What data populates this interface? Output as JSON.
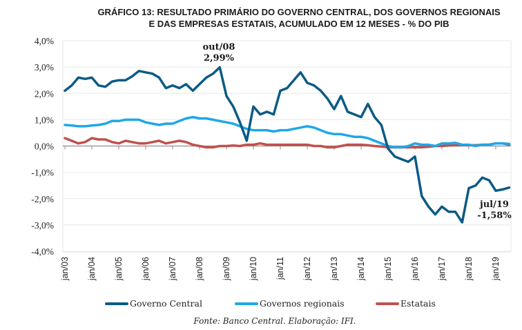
{
  "chart_data": {
    "type": "line",
    "title": "GRÁFICO 13: RESULTADO PRIMÁRIO DO GOVERNO CENTRAL, DOS GOVERNOS REGIONAIS E DAS EMPRESAS ESTATAIS, ACUMULADO EM 12 MESES - % DO PIB",
    "title_lines": [
      "GRÁFICO 13: RESULTADO PRIMÁRIO DO GOVERNO CENTRAL, DOS GOVERNOS REGIONAIS",
      "E DAS EMPRESAS ESTATAIS, ACUMULADO EM 12 MESES - % DO PIB"
    ],
    "xlabel": "",
    "ylabel": "",
    "ylim": [
      -4,
      4
    ],
    "yticks": [
      4,
      3,
      2,
      1,
      0,
      -1,
      -2,
      -3,
      -4
    ],
    "ytick_labels": [
      "4,0%",
      "3,0%",
      "2,0%",
      "1,0%",
      "0,0%",
      "-1,0%",
      "-2,0%",
      "-3,0%",
      "-4,0%"
    ],
    "x_start": "jan/03",
    "x_end": "jul/19",
    "x_step_months": 3,
    "xtick_labels": [
      "jan/03",
      "jan/04",
      "jan/05",
      "jan/06",
      "jan/07",
      "jan/08",
      "jan/09",
      "jan/10",
      "jan/11",
      "jan/12",
      "jan/13",
      "jan/14",
      "jan/15",
      "jan/16",
      "jan/17",
      "jan/18",
      "jan/19"
    ],
    "grid": true,
    "legend_position": "bottom",
    "series": [
      {
        "name": "Governo Central",
        "color": "#0b5a85",
        "values": [
          2.1,
          2.3,
          2.6,
          2.55,
          2.6,
          2.3,
          2.25,
          2.45,
          2.5,
          2.5,
          2.65,
          2.85,
          2.8,
          2.75,
          2.6,
          2.2,
          2.3,
          2.2,
          2.35,
          2.1,
          2.35,
          2.6,
          2.75,
          2.99,
          1.9,
          1.5,
          0.9,
          0.2,
          1.5,
          1.2,
          1.3,
          1.2,
          2.1,
          2.2,
          2.5,
          2.8,
          2.4,
          2.3,
          2.1,
          1.8,
          1.4,
          1.9,
          1.3,
          1.2,
          1.1,
          1.6,
          1.1,
          0.8,
          -0.1,
          -0.4,
          -0.5,
          -0.6,
          -0.4,
          -1.9,
          -2.3,
          -2.6,
          -2.3,
          -2.5,
          -2.5,
          -2.9,
          -1.6,
          -1.5,
          -1.2,
          -1.3,
          -1.7,
          -1.65,
          -1.58
        ]
      },
      {
        "name": "Governos regionais",
        "color": "#1ea7e8",
        "values": [
          0.8,
          0.78,
          0.75,
          0.75,
          0.78,
          0.8,
          0.85,
          0.95,
          0.95,
          1.0,
          1.0,
          1.0,
          0.9,
          0.85,
          0.8,
          0.85,
          0.85,
          0.95,
          1.05,
          1.1,
          1.05,
          1.05,
          1.0,
          0.95,
          0.9,
          0.85,
          0.75,
          0.65,
          0.6,
          0.6,
          0.6,
          0.55,
          0.6,
          0.6,
          0.65,
          0.7,
          0.75,
          0.7,
          0.6,
          0.5,
          0.45,
          0.45,
          0.4,
          0.35,
          0.35,
          0.3,
          0.2,
          0.1,
          0.0,
          -0.05,
          -0.05,
          0.0,
          0.1,
          0.05,
          0.05,
          0.0,
          0.1,
          0.1,
          0.12,
          0.05,
          0.05,
          0.0,
          0.05,
          0.05,
          0.1,
          0.1,
          0.08
        ]
      },
      {
        "name": "Estatais",
        "color": "#c0504d",
        "values": [
          0.3,
          0.2,
          0.1,
          0.15,
          0.3,
          0.25,
          0.25,
          0.15,
          0.1,
          0.2,
          0.15,
          0.1,
          0.1,
          0.15,
          0.2,
          0.1,
          0.15,
          0.2,
          0.15,
          0.05,
          0.0,
          -0.05,
          -0.05,
          0.0,
          0.0,
          0.02,
          0.0,
          0.05,
          0.05,
          0.1,
          0.05,
          0.05,
          0.05,
          0.05,
          0.05,
          0.05,
          0.05,
          0.0,
          0.0,
          -0.05,
          -0.05,
          0.0,
          0.05,
          0.05,
          0.05,
          0.03,
          0.0,
          -0.02,
          -0.05,
          -0.05,
          -0.05,
          -0.05,
          -0.05,
          -0.05,
          -0.03,
          0.0,
          0.0,
          0.02,
          0.03,
          0.03,
          0.03,
          0.03,
          0.05,
          0.05,
          0.1,
          0.1,
          0.05
        ]
      }
    ],
    "annotations": [
      {
        "series": "Governo Central",
        "at": "out/08",
        "value": 2.99,
        "label_lines": [
          "out/08",
          "2,99%"
        ]
      },
      {
        "series": "Governo Central",
        "at": "jul/19",
        "value": -1.58,
        "label_lines": [
          "jul/19",
          "-1,58%"
        ]
      }
    ]
  },
  "legend": {
    "items": [
      {
        "label": "Governo Central",
        "color": "#0b5a85"
      },
      {
        "label": "Governos regionais",
        "color": "#1ea7e8"
      },
      {
        "label": "Estatais",
        "color": "#c0504d"
      }
    ]
  },
  "source": "Fonte: Banco Central. Elaboração: IFI."
}
